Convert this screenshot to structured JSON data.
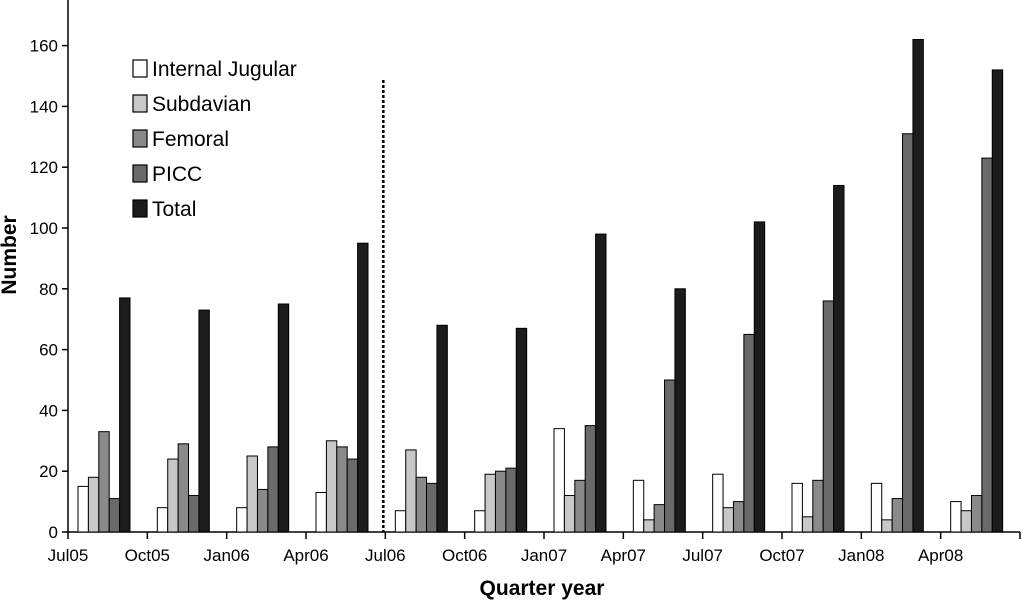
{
  "chart_data": {
    "type": "bar",
    "xlabel": "Quarter year",
    "ylabel": "Number",
    "ylim": [
      0,
      175
    ],
    "yticks": [
      0,
      20,
      40,
      60,
      80,
      100,
      120,
      140,
      160
    ],
    "grid": false,
    "legend_position": "top-left",
    "divider_after_category": "Apr06",
    "categories": [
      "Jul05",
      "Oct05",
      "Jan06",
      "Apr06",
      "Jul06",
      "Oct06",
      "Jan07",
      "Apr07",
      "Jul07",
      "Oct07",
      "Jan08",
      "Apr08"
    ],
    "series": [
      {
        "name": "Internal Jugular",
        "color": "#ffffff",
        "values": [
          15,
          8,
          8,
          13,
          7,
          7,
          34,
          17,
          19,
          16,
          16,
          10
        ]
      },
      {
        "name": "Subdavian",
        "color": "#c8c8c8",
        "values": [
          18,
          24,
          25,
          30,
          27,
          19,
          12,
          4,
          8,
          5,
          4,
          7
        ]
      },
      {
        "name": "Femoral",
        "color": "#8a8a8a",
        "values": [
          33,
          29,
          14,
          28,
          18,
          20,
          17,
          9,
          10,
          17,
          11,
          12
        ]
      },
      {
        "name": "PICC",
        "color": "#6a6a6a",
        "values": [
          11,
          12,
          28,
          24,
          16,
          21,
          35,
          50,
          65,
          76,
          131,
          123
        ]
      },
      {
        "name": "Total",
        "color": "#1c1c1c",
        "values": [
          77,
          73,
          75,
          95,
          68,
          67,
          98,
          80,
          102,
          114,
          162,
          152
        ]
      }
    ]
  }
}
